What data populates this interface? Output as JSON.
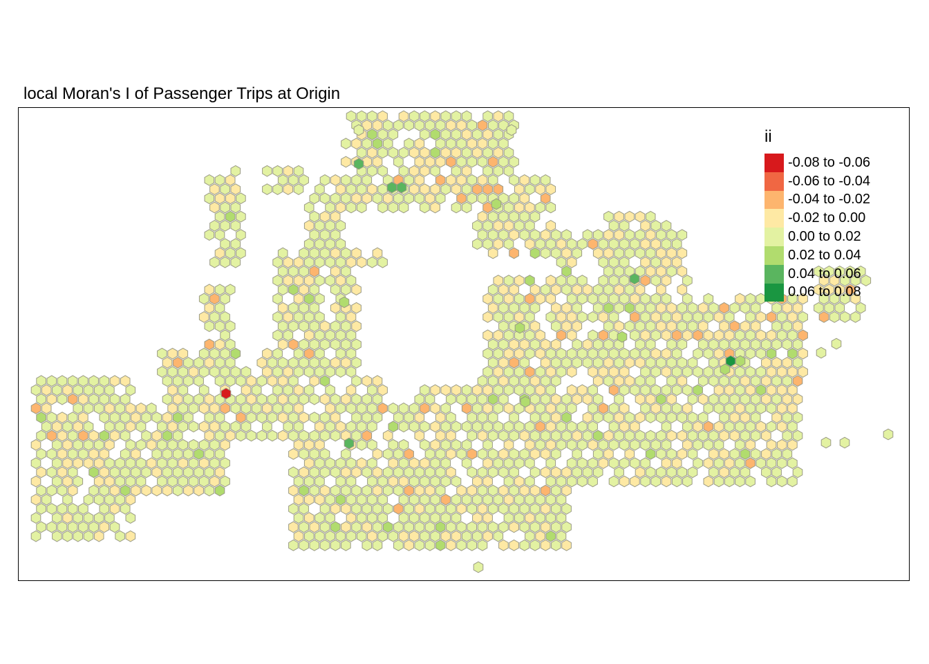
{
  "title": "local Moran's I of Passenger Trips at Origin",
  "legend": {
    "title": "ii",
    "classes": [
      {
        "label": "-0.08 to -0.06",
        "color": "#d7191c"
      },
      {
        "label": "-0.06 to -0.04",
        "color": "#f06743"
      },
      {
        "label": "-0.04 to -0.02",
        "color": "#fdb56e"
      },
      {
        "label": "-0.02 to 0.00",
        "color": "#fee9a4"
      },
      {
        "label": "0.00 to 0.02",
        "color": "#e3f2a2"
      },
      {
        "label": "0.02 to 0.04",
        "color": "#b1dc6e"
      },
      {
        "label": "0.04 to 0.06",
        "color": "#5ab55f"
      },
      {
        "label": "0.06 to 0.08",
        "color": "#1a9641"
      }
    ]
  },
  "map": {
    "cell_shape": "hexagon",
    "cell_border_color": "#9a9a86",
    "highlighted_cells": [
      {
        "class": 0,
        "note": "single strong negative"
      },
      {
        "class": 7,
        "note": "single strong positive"
      }
    ]
  }
}
